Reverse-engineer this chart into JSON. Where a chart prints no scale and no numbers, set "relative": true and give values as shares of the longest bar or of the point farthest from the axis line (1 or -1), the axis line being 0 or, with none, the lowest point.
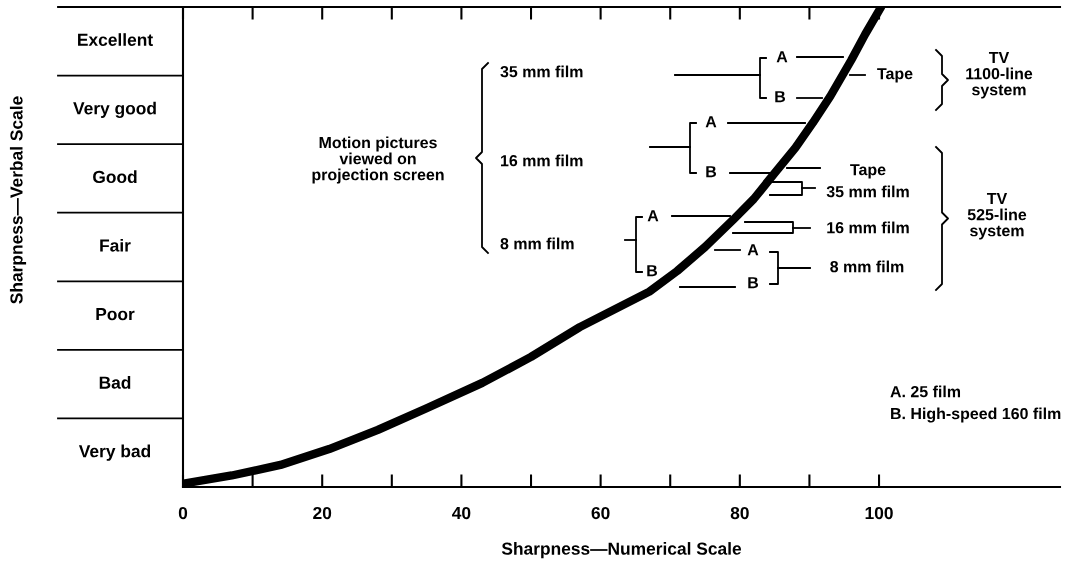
{
  "chart_data": {
    "type": "line",
    "relative": true,
    "xlabel": "Sharpness—Numerical Scale",
    "x": [
      0,
      7,
      14,
      21,
      28,
      35,
      43,
      50,
      57,
      67,
      71,
      75,
      79,
      82,
      85,
      88,
      90.5,
      93,
      96,
      98,
      100.3
    ],
    "series": [
      {
        "color": "#000000",
        "values": [
          0.007,
          0.024,
          0.046,
          0.079,
          0.119,
          0.164,
          0.217,
          0.271,
          0.333,
          0.407,
          0.45,
          0.5,
          0.556,
          0.6,
          0.654,
          0.707,
          0.759,
          0.814,
          0.889,
          0.943,
          1
        ]
      }
    ],
    "xlim": [
      0,
      126
    ],
    "xticks": [
      0,
      {
        "value": 10,
        "label": null
      },
      20,
      {
        "value": 30,
        "label": null
      },
      40,
      {
        "value": 50,
        "label": null
      },
      60,
      {
        "value": 70,
        "label": null
      },
      80,
      {
        "value": 90,
        "label": null
      },
      100
    ],
    "annotations": [
      "Excellent",
      "Very good",
      "Good",
      "Fair",
      "Poor",
      "Bad",
      "Very bad",
      "Motion pictures\nviewed on\nprojection screen",
      "35 mm film",
      "16 mm film",
      "8 mm film",
      "A",
      "B",
      "A",
      "B",
      "A",
      "B",
      "Tape",
      "TV\n1100-line\nsystem",
      "Tape",
      "35 mm film",
      "16 mm film",
      "A",
      "B",
      "8 mm film",
      "TV\n525-line\nsystem",
      "A. 25 film",
      "B. High-speed 160 film",
      "Sharpness—Verbal Scale"
    ]
  }
}
